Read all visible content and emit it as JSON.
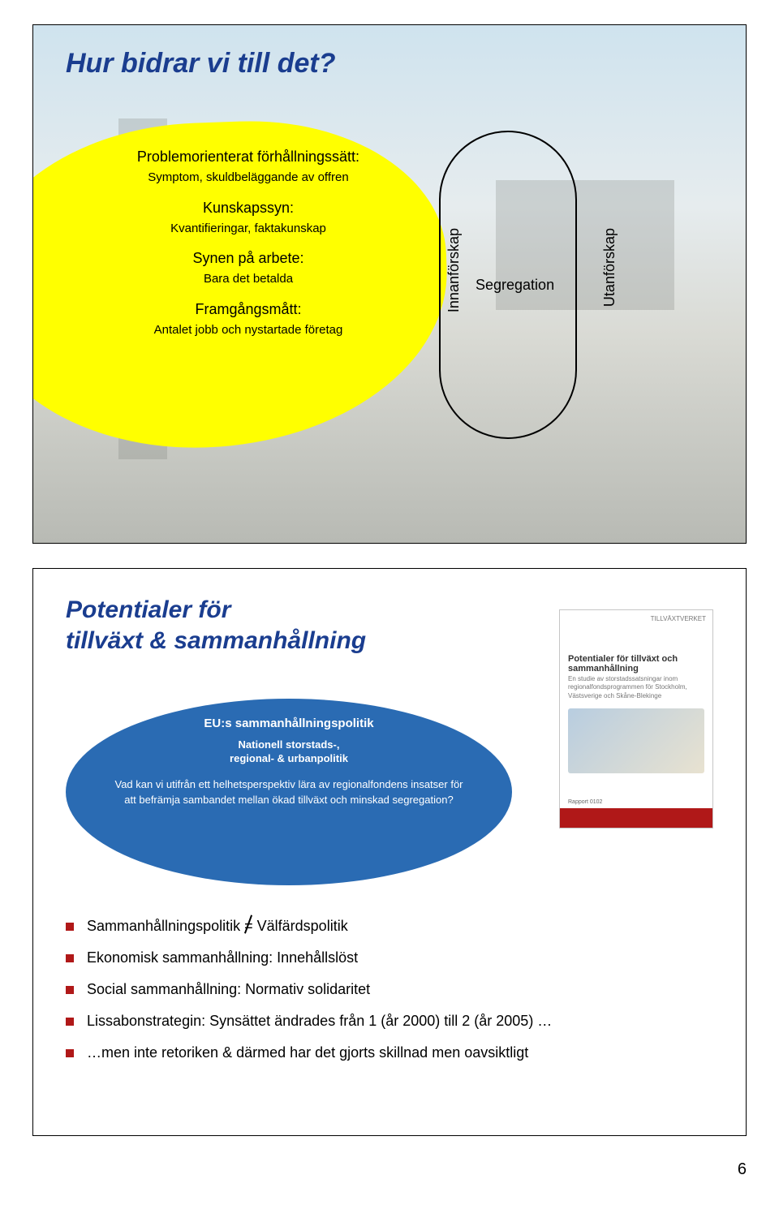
{
  "page_number": "6",
  "slide1": {
    "title": "Hur bidrar vi till det?",
    "title_color": "#1a3d8f",
    "blob_color": "#ffff00",
    "lines": {
      "a_head": "Problemorienterat förhållningssätt:",
      "a_sub": "Symptom, skuldbeläggande av offren",
      "b_head": "Kunskapssyn:",
      "b_sub": "Kvantifieringar, faktakunskap",
      "c_head": "Synen på arbete:",
      "c_sub": "Bara det betalda",
      "d_head": "Framgångsmått:",
      "d_sub": "Antalet jobb och nystartade företag"
    },
    "vertical_inner": "Innanförskap",
    "vertical_outer": "Utanförskap",
    "segregation": "Segregation"
  },
  "slide2": {
    "title_line1": "Potentialer för",
    "title_line2": "tillväxt & sammanhållning",
    "title_color": "#1a3d8f",
    "oval": {
      "bg": "#2a6bb3",
      "l1": "EU:s sammanhållningspolitik",
      "l2a": "Nationell storstads-,",
      "l2b": "regional- & urbanpolitik",
      "l3": "Vad kan vi utifrån ett helhetsperspektiv lära av regionalfondens insatser för att befrämja sambandet mellan ökad tillväxt och minskad segregation?"
    },
    "report": {
      "agency": "TILLVÄXTVERKET",
      "title": "Potentialer för tillväxt och sammanhållning",
      "subtitle": "En studie av storstadssatsningar inom regionalfondsprogrammen för Stockholm, Västsverige och Skåne-Blekinge",
      "footer": "Rapport 0102",
      "bar_color": "#b01818"
    },
    "bullets": {
      "b1_a": "Sammanhållningspolitik ",
      "b1_eq": "=",
      "b1_b": " Välfärdspolitik",
      "b2": "Ekonomisk sammanhållning: Innehållslöst",
      "b3": "Social sammanhållning: Normativ solidaritet",
      "b4": "Lissabonstrategin: Synsättet ändrades från 1 (år 2000) till 2 (år 2005) …",
      "b5": "…men inte retoriken & därmed har det gjorts skillnad men oavsiktligt",
      "marker_color": "#b01818"
    }
  }
}
